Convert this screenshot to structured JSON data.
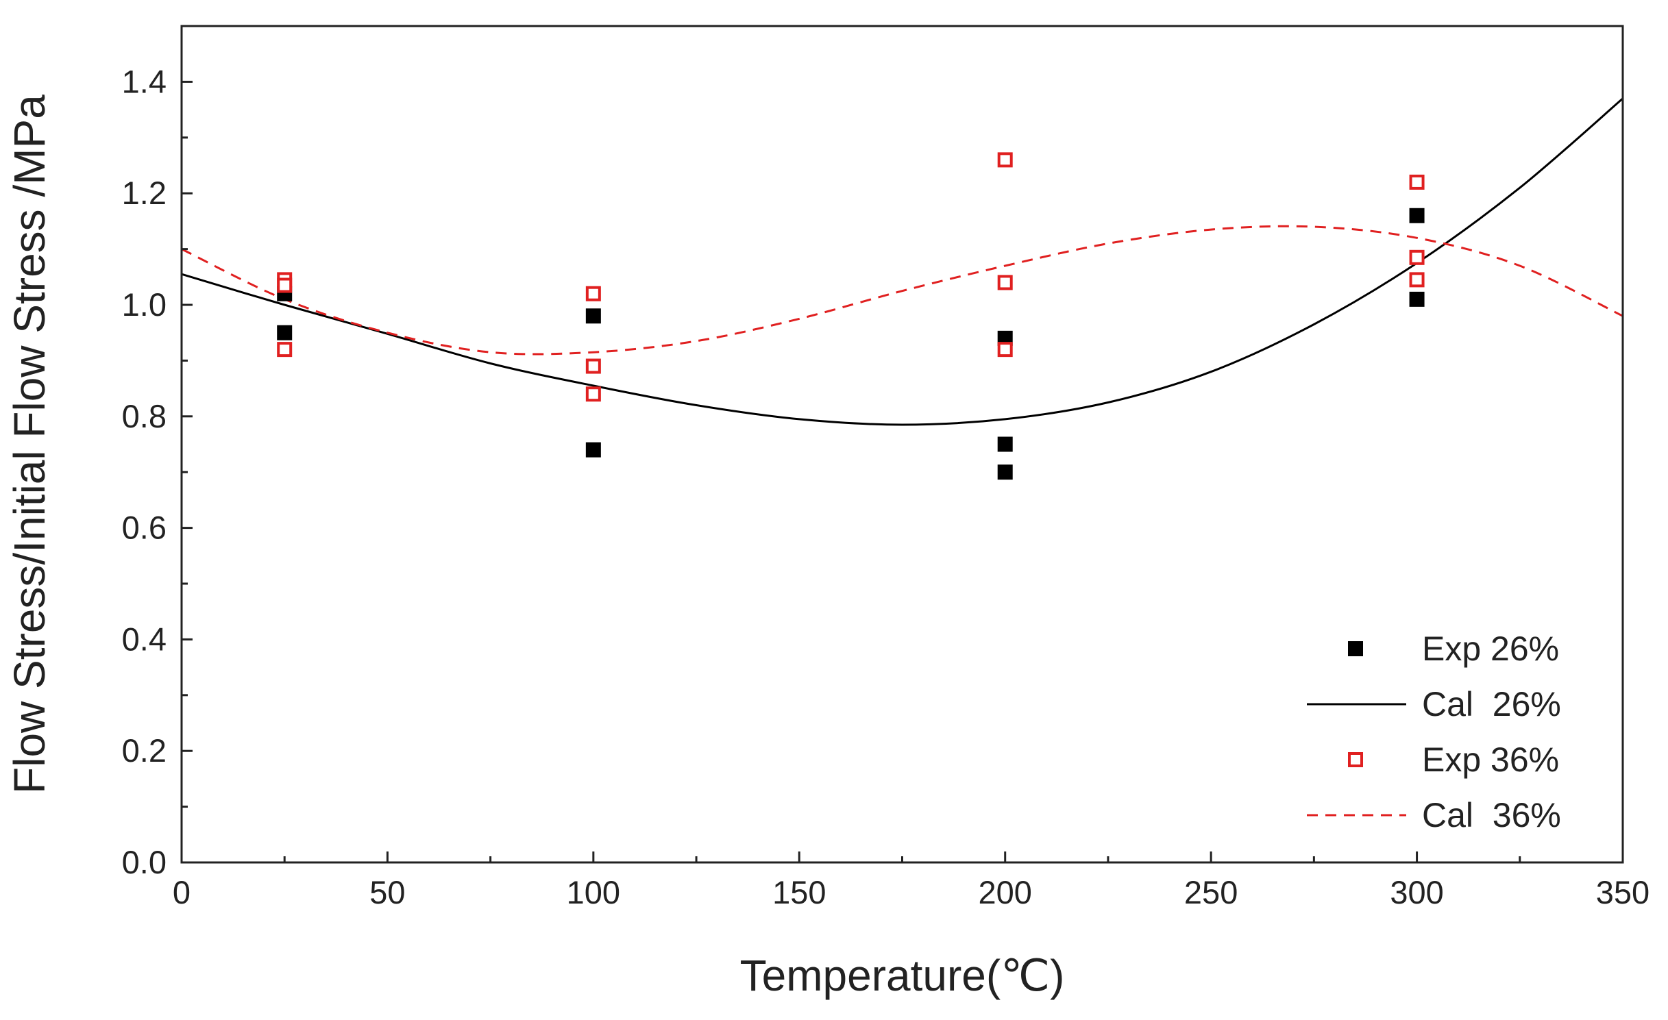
{
  "chart_data": {
    "type": "scatter",
    "title": "",
    "xlabel": "Temperature(℃)",
    "ylabel": "Flow Stress/Initial Flow Stress /MPa",
    "xlim": [
      0,
      350
    ],
    "ylim": [
      0,
      1.5
    ],
    "x_ticks": [
      0,
      50,
      100,
      150,
      200,
      250,
      300,
      350
    ],
    "x_tick_labels": [
      "0",
      "50",
      "100",
      "150",
      "200",
      "250",
      "300",
      "350"
    ],
    "y_ticks": [
      0,
      0.2,
      0.4,
      0.6,
      0.8,
      1.0,
      1.2,
      1.4
    ],
    "y_tick_labels": [
      "0.0",
      "0.2",
      "0.4",
      "0.6",
      "0.8",
      "1.0",
      "1.2",
      "1.4"
    ],
    "grid": false,
    "legend_position": "bottom-right",
    "series": [
      {
        "name": "Exp 26%",
        "kind": "scatter",
        "marker": "filled-square",
        "color": "#000000",
        "x": [
          25,
          25,
          100,
          100,
          200,
          200,
          200,
          300,
          300
        ],
        "y": [
          1.02,
          0.95,
          0.98,
          0.74,
          0.94,
          0.75,
          0.7,
          1.16,
          1.01
        ]
      },
      {
        "name": "Cal  26%",
        "kind": "line",
        "style": "solid",
        "color": "#000000",
        "x": [
          0,
          25,
          50,
          75,
          100,
          125,
          150,
          175,
          200,
          225,
          250,
          275,
          300,
          325,
          350
        ],
        "y": [
          1.055,
          1.0,
          0.948,
          0.895,
          0.855,
          0.82,
          0.795,
          0.785,
          0.795,
          0.825,
          0.88,
          0.965,
          1.075,
          1.21,
          1.37
        ]
      },
      {
        "name": "Exp 36%",
        "kind": "scatter",
        "marker": "open-square",
        "color": "#e02020",
        "x": [
          25,
          25,
          25,
          100,
          100,
          100,
          200,
          200,
          200,
          300,
          300,
          300
        ],
        "y": [
          1.045,
          1.035,
          0.92,
          1.02,
          0.89,
          0.84,
          1.26,
          1.04,
          0.92,
          1.22,
          1.085,
          1.045
        ]
      },
      {
        "name": "Cal  36%",
        "kind": "line",
        "style": "dashed",
        "color": "#e02020",
        "x": [
          0,
          25,
          50,
          75,
          100,
          125,
          150,
          175,
          200,
          225,
          250,
          275,
          300,
          325,
          350
        ],
        "y": [
          1.1,
          1.01,
          0.95,
          0.915,
          0.915,
          0.935,
          0.975,
          1.025,
          1.07,
          1.11,
          1.135,
          1.14,
          1.12,
          1.07,
          0.98
        ]
      }
    ]
  }
}
